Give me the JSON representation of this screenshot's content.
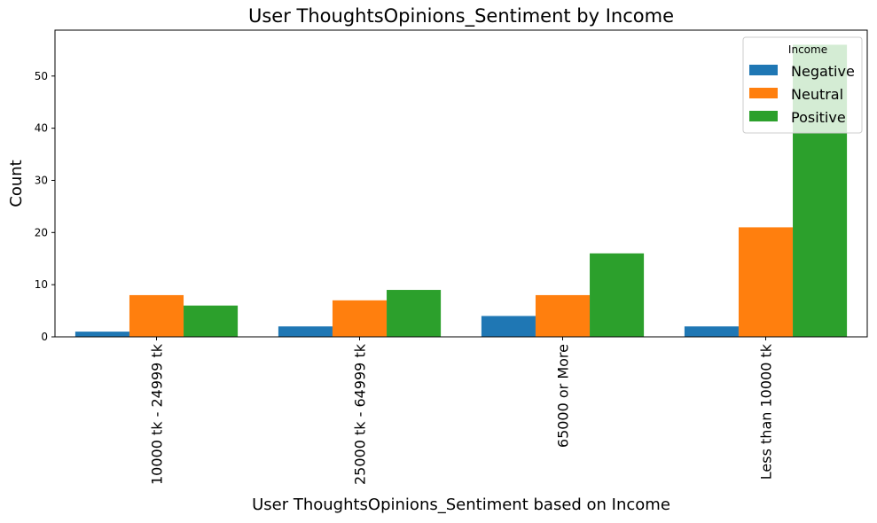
{
  "chart_data": {
    "type": "bar",
    "title": "User ThoughtsOpinions_Sentiment by Income",
    "xlabel": "User ThoughtsOpinions_Sentiment based on Income",
    "ylabel": "Count",
    "categories": [
      "10000 tk - 24999 tk",
      "25000 tk - 64999 tk",
      "65000 or More",
      "Less than 10000 tk"
    ],
    "yticks": [
      0,
      10,
      20,
      30,
      40,
      50
    ],
    "ylim": [
      0,
      58.8
    ],
    "grid": false,
    "legend": {
      "title": "Income",
      "position": "top-right"
    },
    "series": [
      {
        "name": "Negative",
        "color": "#1f77b4",
        "values": [
          1,
          2,
          4,
          2
        ]
      },
      {
        "name": "Neutral",
        "color": "#ff7f0e",
        "values": [
          8,
          7,
          8,
          21
        ]
      },
      {
        "name": "Positive",
        "color": "#2ca02c",
        "values": [
          6,
          9,
          16,
          56
        ]
      }
    ]
  }
}
